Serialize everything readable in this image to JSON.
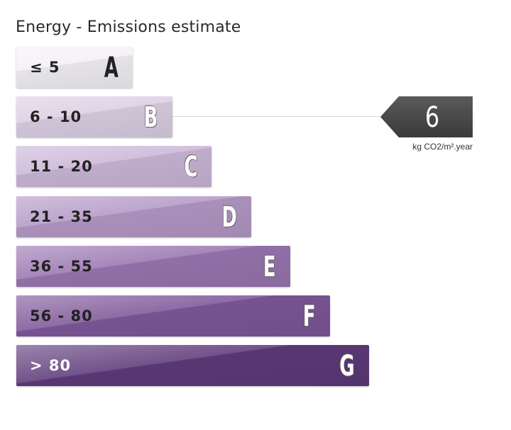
{
  "chart_data": {
    "type": "bar",
    "title": "Energy - Emissions estimate",
    "categories": [
      "A",
      "B",
      "C",
      "D",
      "E",
      "F",
      "G"
    ],
    "ranges": [
      "≤ 5",
      "6 - 10",
      "11 - 20",
      "21 - 35",
      "36 - 55",
      "56 - 80",
      "> 80"
    ],
    "colors": [
      "#f4f1f6",
      "#dccfe4",
      "#cbb7d8",
      "#b499c6",
      "#9a76b1",
      "#7e5799",
      "#5e3a7a"
    ],
    "text_colors": [
      "#222222",
      "#222222",
      "#222222",
      "#222222",
      "#222222",
      "#222222",
      "#ffffff"
    ],
    "indicator": {
      "value": "6",
      "class": "B",
      "unit": "kg CO2/m².year",
      "color": "#4a4a4a"
    }
  }
}
